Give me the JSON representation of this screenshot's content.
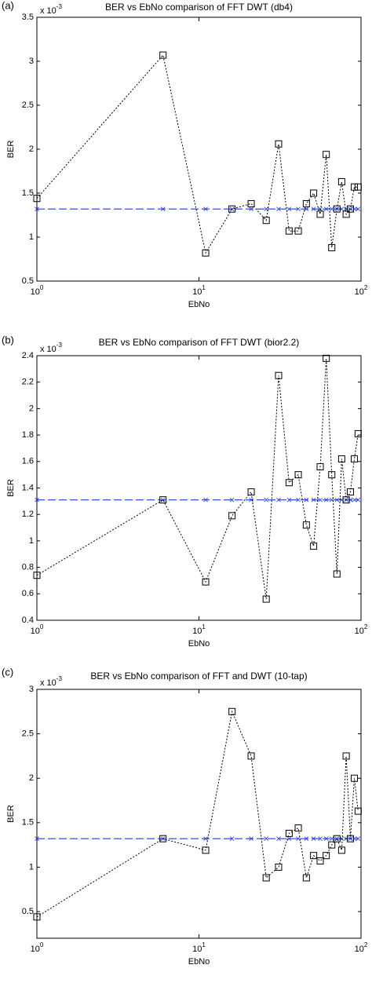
{
  "chart_data": [
    {
      "type": "line",
      "panel_label": "(a)",
      "title": "BER vs EbNo comparison of FFT DWT (db4)",
      "x_label": "EbNo",
      "y_label": "BER",
      "y_exponent_base": "x 10",
      "y_exponent": "-3",
      "log_x": true,
      "x": [
        1,
        6,
        11,
        16,
        21,
        26,
        31,
        36,
        41,
        46,
        51,
        56,
        61,
        66,
        71,
        76,
        81,
        86,
        91,
        96
      ],
      "xlim": [
        1,
        100
      ],
      "xticks": [
        {
          "value": 1,
          "label": "10",
          "exp": "0"
        },
        {
          "value": 10,
          "label": "10",
          "exp": "1"
        },
        {
          "value": 100,
          "label": "10",
          "exp": "2"
        }
      ],
      "ylim": [
        0.5,
        3.5
      ],
      "yticks": [
        0.5,
        1,
        1.5,
        2,
        2.5,
        3,
        3.5
      ],
      "series": [
        {
          "color": "#000000",
          "values": [
            1.44,
            3.07,
            0.82,
            1.32,
            1.38,
            1.19,
            2.06,
            1.07,
            1.07,
            1.38,
            1.5,
            1.26,
            1.94,
            0.88,
            1.32,
            1.63,
            1.26,
            1.32,
            1.57,
            1.57
          ]
        },
        {
          "color": "#1f3fd6",
          "values": [
            1.32,
            1.32,
            1.32,
            1.32,
            1.32,
            1.32,
            1.32,
            1.32,
            1.32,
            1.32,
            1.32,
            1.32,
            1.32,
            1.32,
            1.32,
            1.32,
            1.32,
            1.32,
            1.32,
            1.32
          ]
        }
      ]
    },
    {
      "type": "line",
      "panel_label": "(b)",
      "title": "BER vs EbNo comparison of FFT DWT (bior2.2)",
      "x_label": "EbNo",
      "y_label": "BER",
      "y_exponent_base": "x 10",
      "y_exponent": "-3",
      "log_x": true,
      "x": [
        1,
        6,
        11,
        16,
        21,
        26,
        31,
        36,
        41,
        46,
        51,
        56,
        61,
        66,
        71,
        76,
        81,
        86,
        91,
        96
      ],
      "xlim": [
        1,
        100
      ],
      "xticks": [
        {
          "value": 1,
          "label": "10",
          "exp": "0"
        },
        {
          "value": 10,
          "label": "10",
          "exp": "1"
        },
        {
          "value": 100,
          "label": "10",
          "exp": "2"
        }
      ],
      "ylim": [
        0.4,
        2.4
      ],
      "yticks": [
        0.4,
        0.6,
        0.8,
        1,
        1.2,
        1.4,
        1.6,
        1.8,
        2,
        2.2,
        2.4
      ],
      "series": [
        {
          "color": "#000000",
          "values": [
            0.74,
            1.31,
            0.69,
            1.19,
            1.37,
            0.56,
            2.25,
            1.44,
            1.5,
            1.12,
            0.96,
            1.56,
            2.38,
            1.5,
            0.75,
            1.62,
            1.31,
            1.37,
            1.62,
            1.81
          ]
        },
        {
          "color": "#1f3fd6",
          "values": [
            1.31,
            1.31,
            1.31,
            1.31,
            1.31,
            1.31,
            1.31,
            1.31,
            1.31,
            1.31,
            1.31,
            1.31,
            1.31,
            1.31,
            1.31,
            1.31,
            1.31,
            1.31,
            1.31,
            1.31
          ]
        }
      ]
    },
    {
      "type": "line",
      "panel_label": "(c)",
      "title": "BER vs EbNo comparison of FFT and DWT (10-tap)",
      "x_label": "EbNo",
      "y_label": "BER",
      "y_exponent_base": "x 10",
      "y_exponent": "-3",
      "log_x": true,
      "x": [
        1,
        6,
        11,
        16,
        21,
        26,
        31,
        36,
        41,
        46,
        51,
        56,
        61,
        66,
        71,
        76,
        81,
        86,
        91,
        96
      ],
      "xlim": [
        1,
        100
      ],
      "xticks": [
        {
          "value": 1,
          "label": "10",
          "exp": "0"
        },
        {
          "value": 10,
          "label": "10",
          "exp": "1"
        },
        {
          "value": 100,
          "label": "10",
          "exp": "2"
        }
      ],
      "ylim": [
        0.2,
        3
      ],
      "yticks": [
        0.5,
        1,
        1.5,
        2,
        2.5,
        3
      ],
      "series": [
        {
          "color": "#000000",
          "values": [
            0.44,
            1.32,
            1.19,
            2.75,
            2.25,
            0.88,
            1.0,
            1.38,
            1.44,
            0.88,
            1.13,
            1.07,
            1.13,
            1.25,
            1.32,
            1.19,
            2.25,
            1.32,
            2.0,
            1.63
          ]
        },
        {
          "color": "#1f3fd6",
          "values": [
            1.32,
            1.32,
            1.32,
            1.32,
            1.32,
            1.32,
            1.32,
            1.32,
            1.32,
            1.32,
            1.32,
            1.32,
            1.32,
            1.32,
            1.32,
            1.32,
            1.32,
            1.32,
            1.32,
            1.32
          ]
        }
      ]
    }
  ]
}
